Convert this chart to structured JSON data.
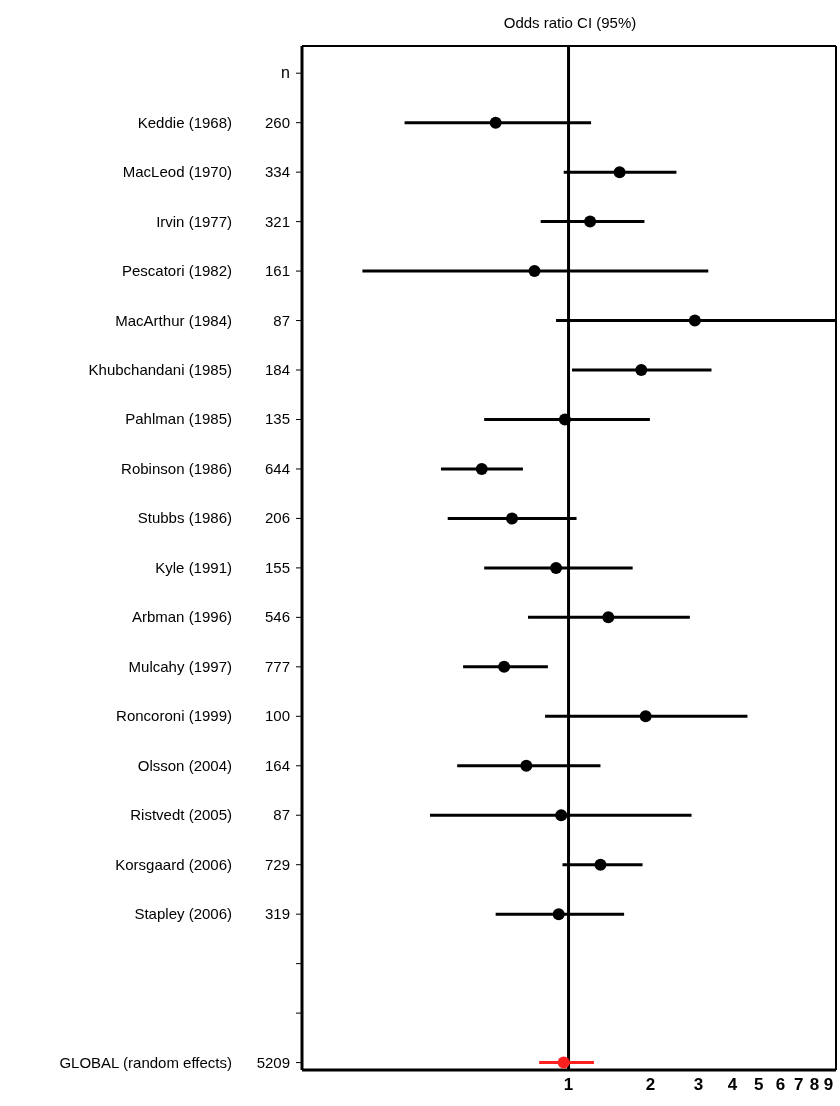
{
  "chart_data": {
    "type": "scatter",
    "title": "Odds ratio CI (95%)",
    "orientation": "horizontal",
    "categories": [
      "Keddie (1968)",
      "MacLeod (1970)",
      "Irvin (1977)",
      "Pescatori (1982)",
      "MacArthur (1984)",
      "Khubchandani (1985)",
      "Pahlman (1985)",
      "Robinson (1986)",
      "Stubbs (1986)",
      "Kyle (1991)",
      "Arbman (1996)",
      "Mulcahy (1997)",
      "Roncoroni (1999)",
      "Olsson (2004)",
      "Ristvedt (2005)",
      "Korsgaard (2006)",
      "Stapley (2006)",
      null,
      null,
      "GLOBAL (random effects)"
    ],
    "values": [
      0.54,
      1.54,
      1.2,
      0.75,
      2.91,
      1.85,
      0.97,
      0.48,
      0.62,
      0.9,
      1.4,
      0.58,
      1.92,
      0.7,
      0.94,
      1.31,
      0.92,
      null,
      null,
      0.96
    ],
    "errors": [
      [
        0.25,
        1.21
      ],
      [
        0.96,
        2.49
      ],
      [
        0.79,
        1.9
      ],
      [
        0.175,
        3.26
      ],
      [
        0.9,
        9.6
      ],
      [
        1.03,
        3.35
      ],
      [
        0.49,
        1.99
      ],
      [
        0.34,
        0.68
      ],
      [
        0.36,
        1.07
      ],
      [
        0.49,
        1.72
      ],
      [
        0.71,
        2.79
      ],
      [
        0.41,
        0.84
      ],
      [
        0.82,
        4.54
      ],
      [
        0.39,
        1.31
      ],
      [
        0.31,
        2.83
      ],
      [
        0.95,
        1.87
      ],
      [
        0.54,
        1.6
      ],
      null,
      null,
      [
        0.78,
        1.24
      ]
    ],
    "colors": [
      "#000000",
      "#000000",
      "#000000",
      "#000000",
      "#000000",
      "#000000",
      "#000000",
      "#000000",
      "#000000",
      "#000000",
      "#000000",
      "#000000",
      "#000000",
      "#000000",
      "#000000",
      "#000000",
      "#000000",
      "#000000",
      "#000000",
      "#ff2020"
    ],
    "marker": "circle",
    "log": "x",
    "xlim": [
      0.105,
      9.6
    ],
    "xticks": [
      1,
      2,
      3,
      4,
      5,
      6,
      7,
      8,
      9
    ],
    "ref_lines": [
      {
        "axis": "x",
        "value": 1
      }
    ],
    "annotations": [
      "n",
      "260",
      "334",
      "321",
      "161",
      "87",
      "184",
      "135",
      "644",
      "206",
      "155",
      "546",
      "777",
      "100",
      "164",
      "87",
      "729",
      "319",
      "5209"
    ]
  }
}
